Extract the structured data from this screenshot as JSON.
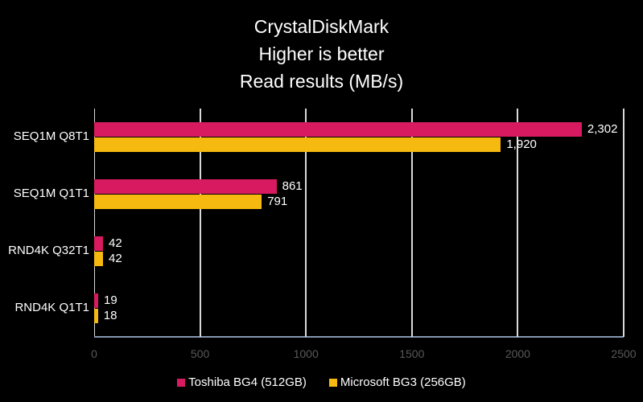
{
  "chart_data": {
    "type": "bar",
    "orientation": "horizontal",
    "title": [
      "CrystalDiskMark",
      "Higher is better",
      "Read results (MB/s)"
    ],
    "categories": [
      "SEQ1M Q8T1",
      "SEQ1M Q1T1",
      "RND4K Q32T1",
      "RND4K Q1T1"
    ],
    "series": [
      {
        "name": "Toshiba BG4 (512GB)",
        "color": "#d81b60",
        "values": [
          2302,
          861,
          42,
          19
        ],
        "labels": [
          "2,302",
          "861",
          "42",
          "19"
        ]
      },
      {
        "name": "Microsoft BG3 (256GB)",
        "color": "#f5b90f",
        "values": [
          1920,
          791,
          42,
          18
        ],
        "labels": [
          "1,920",
          "791",
          "42",
          "18"
        ]
      }
    ],
    "xlim": [
      0,
      2500
    ],
    "xticks": [
      "0",
      "500",
      "1000",
      "1500",
      "2000",
      "2500"
    ],
    "grid": true,
    "legend_position": "bottom"
  }
}
